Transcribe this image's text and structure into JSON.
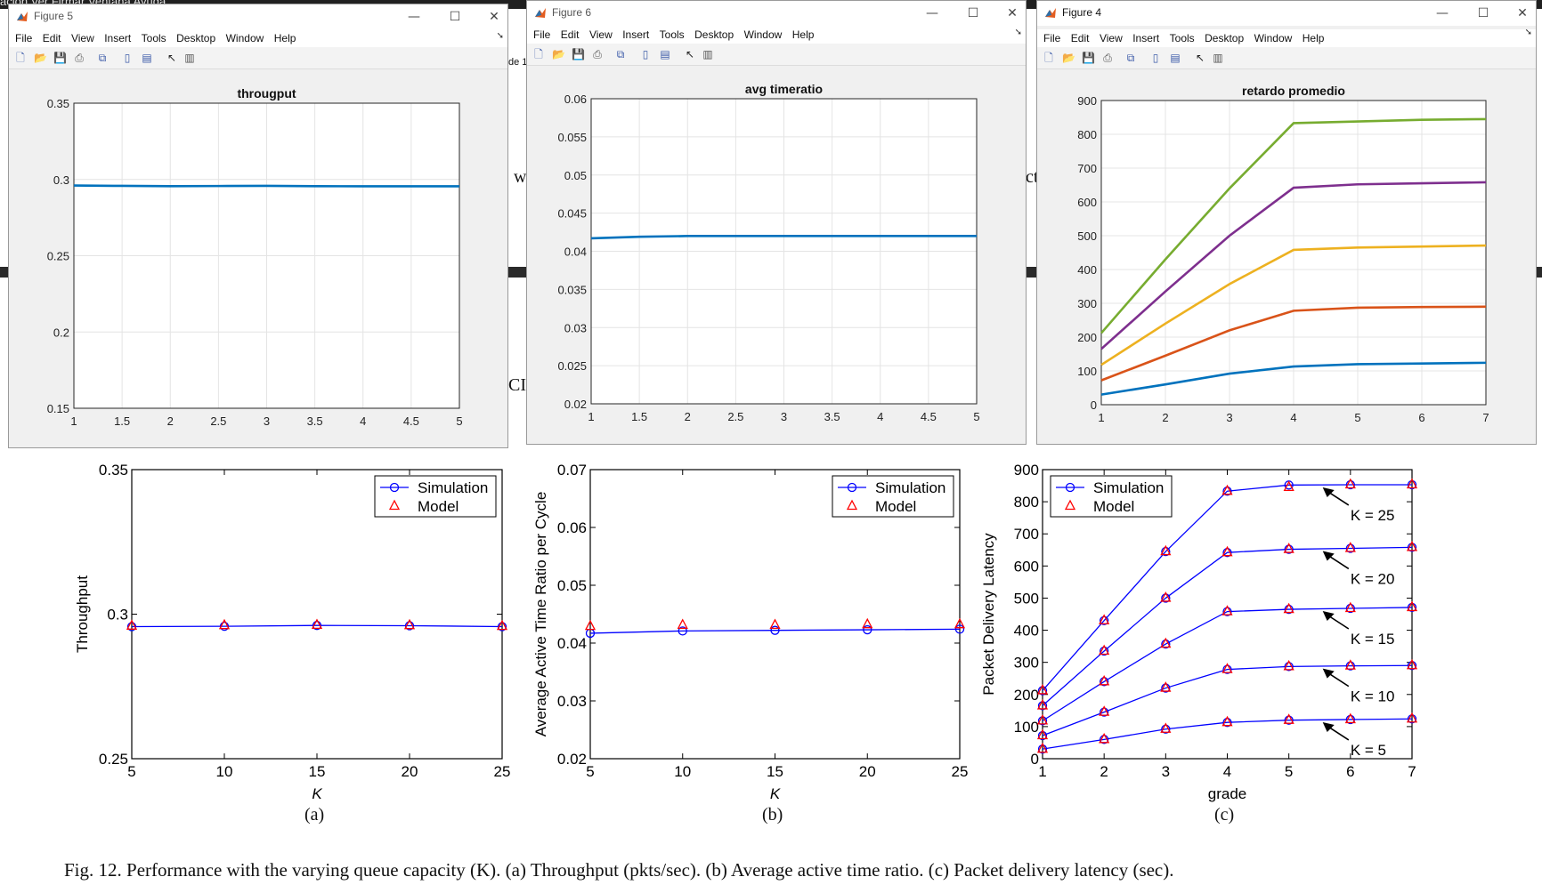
{
  "background": {
    "menu_fragment": "ación   Ver   Firmar   Ventana   Ayuda",
    "doc_fragments": [
      "w",
      "ct",
      "CI",
      "de 1"
    ]
  },
  "windows": [
    {
      "title": "Figure 5",
      "menu": [
        "File",
        "Edit",
        "View",
        "Insert",
        "Tools",
        "Desktop",
        "Window",
        "Help"
      ]
    },
    {
      "title": "Figure 6",
      "menu": [
        "File",
        "Edit",
        "View",
        "Insert",
        "Tools",
        "Desktop",
        "Window",
        "Help"
      ]
    },
    {
      "title": "Figure 4",
      "menu": [
        "File",
        "Edit",
        "View",
        "Insert",
        "Tools",
        "Desktop",
        "Window",
        "Help"
      ]
    }
  ],
  "window_controls": {
    "minimize": "—",
    "maximize": "☐",
    "close": "✕"
  },
  "colors": {
    "matlab_blue": "#0072bd",
    "matlab_orange": "#d95319",
    "matlab_yellow": "#edb120",
    "matlab_purple": "#7e2f8e",
    "matlab_green": "#77ac30",
    "sim_blue": "#0000ff",
    "model_red": "#ff0000"
  },
  "chart_data": [
    {
      "type": "line",
      "title": "througput",
      "x": [
        1,
        1.5,
        2,
        2.5,
        3,
        3.5,
        4,
        4.5,
        5
      ],
      "series": [
        {
          "values": [
            0.296,
            0.2958,
            0.2956,
            0.2957,
            0.2958,
            0.2956,
            0.2955,
            0.2955,
            0.2955
          ]
        }
      ],
      "xlim": [
        1,
        5
      ],
      "ylim": [
        0.15,
        0.35
      ],
      "xticks": [
        "1",
        "1.5",
        "2",
        "2.5",
        "3",
        "3.5",
        "4",
        "4.5",
        "5"
      ],
      "yticks": [
        "0.15",
        "0.2",
        "0.25",
        "0.3",
        "0.35"
      ],
      "grid": true
    },
    {
      "type": "line",
      "title": "avg timeratio",
      "x": [
        1,
        1.5,
        2,
        2.5,
        3,
        3.5,
        4,
        4.5,
        5
      ],
      "series": [
        {
          "values": [
            0.0417,
            0.0419,
            0.042,
            0.042,
            0.042,
            0.042,
            0.042,
            0.042,
            0.042
          ]
        }
      ],
      "xlim": [
        1,
        5
      ],
      "ylim": [
        0.02,
        0.06
      ],
      "xticks": [
        "1",
        "1.5",
        "2",
        "2.5",
        "3",
        "3.5",
        "4",
        "4.5",
        "5"
      ],
      "yticks": [
        "0.02",
        "0.025",
        "0.03",
        "0.035",
        "0.04",
        "0.045",
        "0.05",
        "0.055",
        "0.06"
      ],
      "grid": true
    },
    {
      "type": "line",
      "title": "retardo promedio",
      "x": [
        1,
        2,
        3,
        4,
        5,
        6,
        7
      ],
      "series": [
        {
          "values": [
            30,
            60,
            92,
            113,
            120,
            122,
            124
          ]
        },
        {
          "values": [
            72,
            145,
            220,
            278,
            287,
            289,
            290
          ]
        },
        {
          "values": [
            118,
            240,
            357,
            458,
            465,
            468,
            471
          ]
        },
        {
          "values": [
            165,
            335,
            500,
            642,
            652,
            655,
            658
          ]
        },
        {
          "values": [
            212,
            430,
            640,
            833,
            838,
            843,
            845
          ]
        }
      ],
      "xlim": [
        1,
        7
      ],
      "ylim": [
        0,
        900
      ],
      "xticks": [
        "1",
        "2",
        "3",
        "4",
        "5",
        "6",
        "7"
      ],
      "yticks": [
        "0",
        "100",
        "200",
        "300",
        "400",
        "500",
        "600",
        "700",
        "800",
        "900"
      ],
      "grid": true
    },
    {
      "type": "line",
      "xlabel": "K",
      "ylabel": "Throughput",
      "x": [
        5,
        10,
        15,
        20,
        25
      ],
      "series": [
        {
          "name": "Simulation",
          "values": [
            0.2957,
            0.2958,
            0.2961,
            0.296,
            0.2957
          ]
        },
        {
          "name": "Model",
          "values": [
            0.2959,
            0.2961,
            0.2962,
            0.2961,
            0.2958
          ]
        }
      ],
      "xlim": [
        5,
        25
      ],
      "ylim": [
        0.25,
        0.35
      ],
      "xticks": [
        "5",
        "10",
        "15",
        "20",
        "25"
      ],
      "yticks": [
        "0.25",
        "0.3",
        "0.35"
      ],
      "legend": "top-right",
      "grid": false
    },
    {
      "type": "line",
      "xlabel": "K",
      "ylabel": "Average Active Time Ratio per Cycle",
      "x": [
        5,
        10,
        15,
        20,
        25
      ],
      "series": [
        {
          "name": "Simulation",
          "values": [
            0.0417,
            0.0421,
            0.0422,
            0.0423,
            0.0424
          ]
        },
        {
          "name": "Model",
          "values": [
            0.0429,
            0.0431,
            0.0431,
            0.0432,
            0.0432
          ]
        }
      ],
      "xlim": [
        5,
        25
      ],
      "ylim": [
        0.02,
        0.07
      ],
      "xticks": [
        "5",
        "10",
        "15",
        "20",
        "25"
      ],
      "yticks": [
        "0.02",
        "0.03",
        "0.04",
        "0.05",
        "0.06",
        "0.07"
      ],
      "legend": "top-right",
      "grid": false
    },
    {
      "type": "line",
      "xlabel": "grade",
      "ylabel": "Packet Delivery Latency",
      "x": [
        1,
        2,
        3,
        4,
        5,
        6,
        7
      ],
      "series": [
        {
          "name": "Simulation",
          "groups": [
            [
              30,
              60,
              92,
              113,
              120,
              122,
              124
            ],
            [
              72,
              145,
              220,
              278,
              287,
              289,
              290
            ],
            [
              118,
              240,
              357,
              458,
              465,
              468,
              471
            ],
            [
              165,
              335,
              500,
              642,
              652,
              655,
              658
            ],
            [
              212,
              430,
              645,
              833,
              852,
              853,
              853
            ]
          ]
        },
        {
          "name": "Model",
          "groups": [
            [
              30,
              60,
              92,
              113,
              120,
              122,
              124
            ],
            [
              72,
              145,
              220,
              278,
              287,
              289,
              290
            ],
            [
              118,
              240,
              357,
              458,
              465,
              468,
              471
            ],
            [
              165,
              335,
              500,
              642,
              652,
              655,
              658
            ],
            [
              212,
              430,
              645,
              833,
              845,
              853,
              853
            ]
          ]
        }
      ],
      "xlim": [
        1,
        7
      ],
      "ylim": [
        0,
        900
      ],
      "xticks": [
        "1",
        "2",
        "3",
        "4",
        "5",
        "6",
        "7"
      ],
      "yticks": [
        "0",
        "100",
        "200",
        "300",
        "400",
        "500",
        "600",
        "700",
        "800",
        "900"
      ],
      "annotations": [
        "K = 25",
        "K = 20",
        "K = 15",
        "K = 10",
        "K = 5"
      ],
      "legend": "top-left",
      "grid": false
    }
  ],
  "legend_labels": {
    "sim": "Simulation",
    "model": "Model"
  },
  "subfig_labels": [
    "(a)",
    "(b)",
    "(c)"
  ],
  "caption": "Fig.  12.  Performance with the varying queue capacity (K). (a) Throughput (pkts/sec). (b) Average active time ratio. (c) Packet delivery latency (sec)."
}
